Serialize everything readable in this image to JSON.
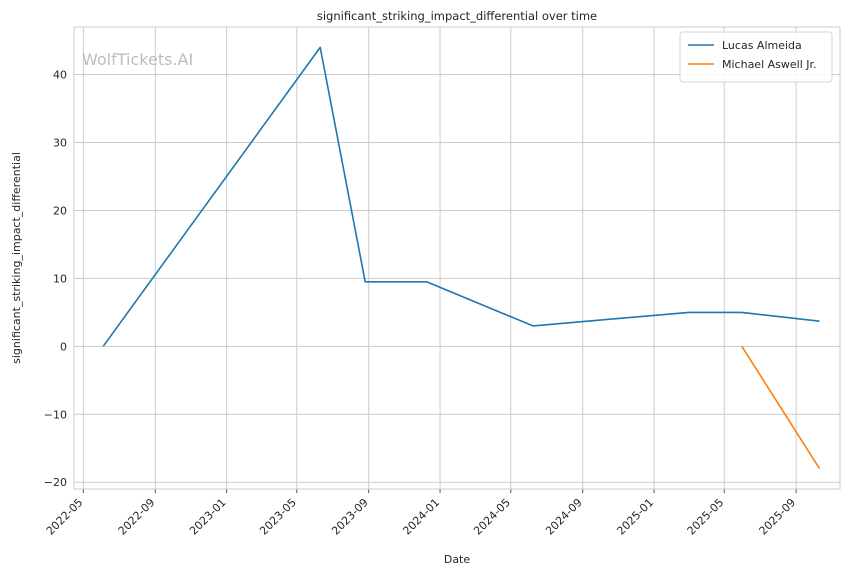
{
  "chart_data": {
    "type": "line",
    "title": "significant_striking_impact_differential over time",
    "xlabel": "Date",
    "ylabel": "significant_striking_impact_differential",
    "watermark": "WolfTickets.AI",
    "x_ticks": [
      "2022-05",
      "2022-09",
      "2023-01",
      "2023-05",
      "2023-09",
      "2024-01",
      "2024-05",
      "2024-09",
      "2025-01",
      "2025-05",
      "2025-09"
    ],
    "y_ticks": [
      -20,
      -10,
      0,
      10,
      20,
      30,
      40
    ],
    "xlim": [
      "2022-04-15",
      "2025-11-15"
    ],
    "ylim": [
      -21,
      47
    ],
    "grid": true,
    "legend_position": "top-right",
    "series": [
      {
        "name": "Lucas Almeida",
        "color": "#1f77b4",
        "points": [
          {
            "x": "2022-06-04",
            "y": 0
          },
          {
            "x": "2023-06-10",
            "y": 44
          },
          {
            "x": "2023-08-26",
            "y": 9.5
          },
          {
            "x": "2023-12-09",
            "y": 9.5
          },
          {
            "x": "2024-06-08",
            "y": 3
          },
          {
            "x": "2025-03-01",
            "y": 5
          },
          {
            "x": "2025-05-31",
            "y": 5
          },
          {
            "x": "2025-10-11",
            "y": 3.7
          }
        ]
      },
      {
        "name": "Michael Aswell Jr.",
        "color": "#ff7f0e",
        "points": [
          {
            "x": "2025-05-31",
            "y": 0
          },
          {
            "x": "2025-10-11",
            "y": -18
          }
        ]
      }
    ]
  }
}
